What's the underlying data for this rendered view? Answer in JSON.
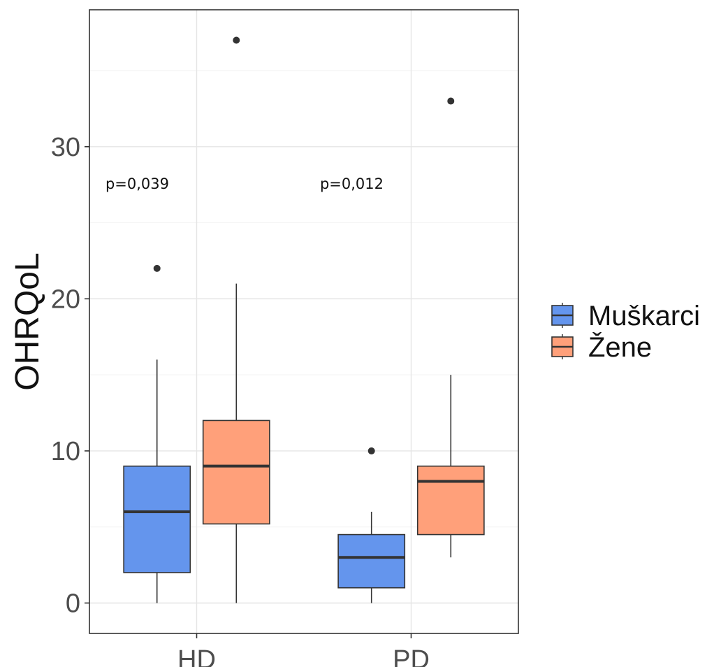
{
  "chart_data": {
    "type": "box",
    "title": "",
    "xlabel": "",
    "ylabel": "OHRQoL",
    "categories": [
      "HD",
      "PD"
    ],
    "ylim": [
      -2,
      39
    ],
    "yticks": [
      0,
      10,
      20,
      30
    ],
    "grid": true,
    "legend_position": "right",
    "series": [
      {
        "name": "Muškarci",
        "color": "#6495ed",
        "boxes": [
          {
            "category": "HD",
            "min": 0,
            "q1": 2,
            "median": 6,
            "q3": 9,
            "max": 16,
            "outliers": [
              22
            ]
          },
          {
            "category": "PD",
            "min": 0,
            "q1": 1,
            "median": 3,
            "q3": 4.5,
            "max": 6,
            "outliers": [
              10
            ]
          }
        ]
      },
      {
        "name": "Žene",
        "color": "#ffa07a",
        "boxes": [
          {
            "category": "HD",
            "min": 0,
            "q1": 5.2,
            "median": 9,
            "q3": 12,
            "max": 21,
            "outliers": [
              37
            ]
          },
          {
            "category": "PD",
            "min": 3,
            "q1": 4.5,
            "median": 8,
            "q3": 9,
            "max": 15,
            "outliers": [
              33
            ]
          }
        ]
      }
    ],
    "annotations": [
      {
        "text": "p=0,039",
        "category": "HD",
        "y": 27.6
      },
      {
        "text": "p=0,012",
        "category": "PD",
        "y": 27.6
      }
    ]
  }
}
